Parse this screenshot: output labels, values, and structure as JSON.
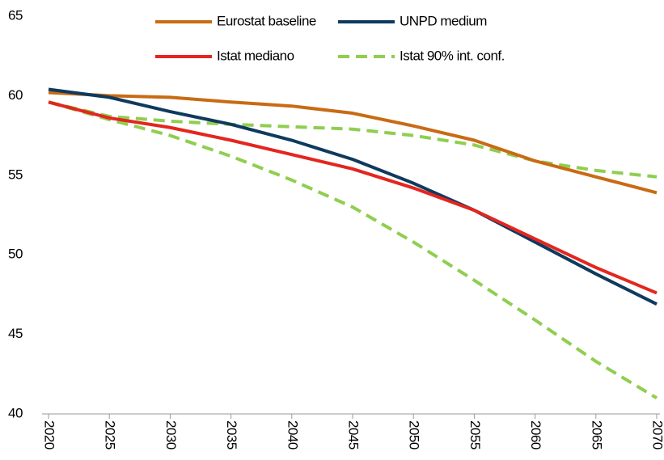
{
  "chart_data": {
    "type": "line",
    "x": [
      2020,
      2025,
      2030,
      2035,
      2040,
      2045,
      2050,
      2055,
      2060,
      2065,
      2070
    ],
    "series": [
      {
        "name": "Eurostat baseline",
        "color": "#c86b14",
        "values": [
          60.2,
          60.0,
          59.9,
          59.6,
          59.35,
          58.9,
          58.1,
          57.2,
          55.9,
          54.9,
          53.9
        ]
      },
      {
        "name": "UNPD medium",
        "color": "#0e3a5e",
        "values": [
          60.4,
          59.9,
          59.0,
          58.2,
          57.2,
          56.0,
          54.5,
          52.8,
          50.8,
          48.8,
          46.9
        ]
      },
      {
        "name": "Istat mediano",
        "color": "#e3261f",
        "values": [
          59.6,
          58.6,
          58.0,
          57.2,
          56.3,
          55.4,
          54.2,
          52.8,
          51.0,
          49.2,
          47.6
        ]
      },
      {
        "name": "Istat 90% int. conf.",
        "color": "#8fce4f",
        "dashed": true,
        "values": [
          59.6,
          58.7,
          58.4,
          58.2,
          58.05,
          57.9,
          57.5,
          56.9,
          55.9,
          55.3,
          54.9
        ],
        "lower": [
          59.6,
          58.5,
          57.5,
          56.2,
          54.7,
          53.0,
          50.8,
          48.4,
          45.9,
          43.3,
          41.0
        ]
      }
    ],
    "xlim": [
      2020,
      2070
    ],
    "xticks": [
      2020,
      2025,
      2030,
      2035,
      2040,
      2045,
      2050,
      2055,
      2060,
      2065,
      2070
    ],
    "ylim": [
      40,
      65
    ],
    "yticks": [
      40,
      45,
      50,
      55,
      60,
      65
    ]
  }
}
